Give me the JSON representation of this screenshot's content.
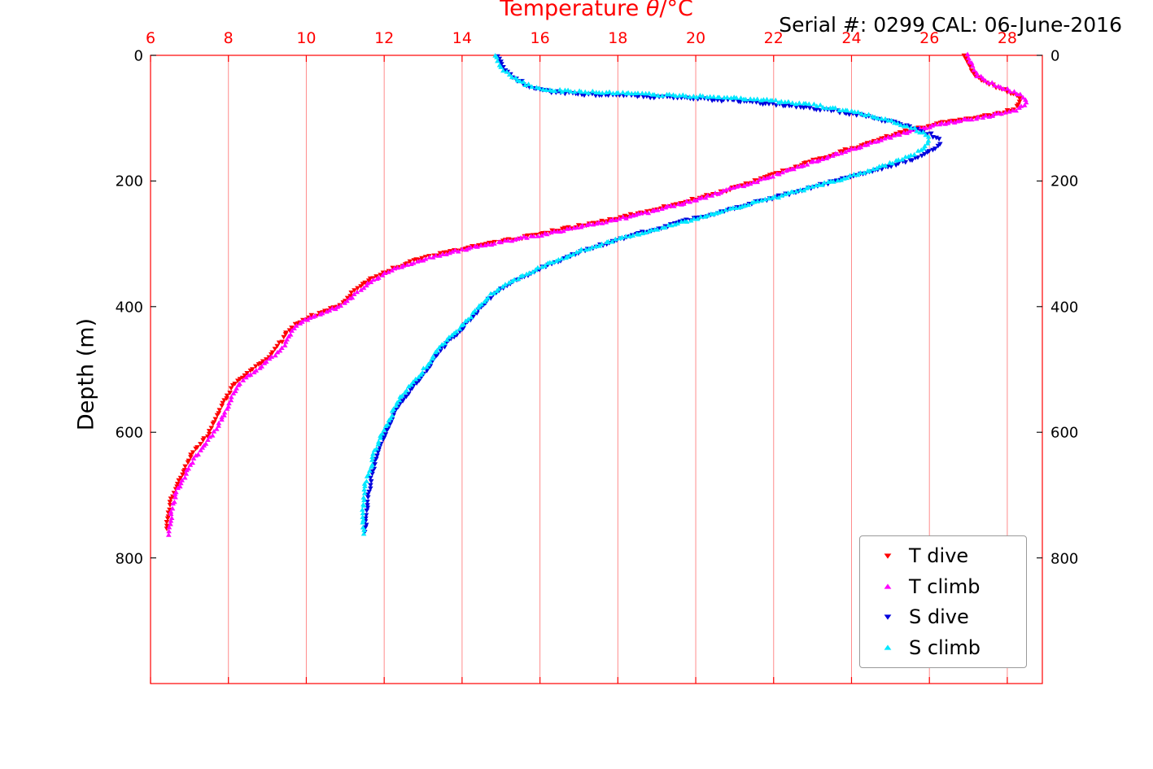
{
  "title": {
    "prefix": "Temperature ",
    "theta": "θ",
    "suffix": "/°C"
  },
  "annotation": "Serial #: 0299 CAL: 06-June-2016",
  "colors": {
    "axis_x": "#ff0000",
    "grid": "#ff0000",
    "t_dive": "#ff0000",
    "t_climb": "#ff00ff",
    "s_dive": "#0000dd",
    "s_climb": "#00e8ff",
    "text": "#000000"
  },
  "legend": {
    "position": "lower right",
    "items": [
      {
        "label": "T dive",
        "color": "#ff0000",
        "marker": "triangle-down"
      },
      {
        "label": "T climb",
        "color": "#ff00ff",
        "marker": "triangle-up"
      },
      {
        "label": "S dive",
        "color": "#0000dd",
        "marker": "triangle-down"
      },
      {
        "label": "S climb",
        "color": "#00e8ff",
        "marker": "triangle-up"
      }
    ]
  },
  "chart_data": {
    "type": "scatter",
    "title": "Temperature θ/°C",
    "xlabel": "Temperature θ/°C",
    "ylabel": "Depth (m)",
    "annotation": "Serial #: 0299 CAL: 06-June-2016",
    "xlim": [
      6,
      28.9
    ],
    "ylim": [
      0,
      1000
    ],
    "y_axis_reversed": true,
    "x_ticks": [
      6,
      8,
      10,
      12,
      14,
      16,
      18,
      20,
      22,
      24,
      26,
      28
    ],
    "y_ticks": [
      0,
      200,
      400,
      600,
      800
    ],
    "grid": "vertical-red",
    "legend_position": "lower right",
    "series": [
      {
        "name": "T dive",
        "color": "#ff0000",
        "marker": "triangle-down",
        "points": [
          [
            0,
            26.9
          ],
          [
            10,
            27.0
          ],
          [
            20,
            27.05
          ],
          [
            30,
            27.15
          ],
          [
            40,
            27.35
          ],
          [
            48,
            27.65
          ],
          [
            55,
            27.95
          ],
          [
            62,
            28.2
          ],
          [
            70,
            28.35
          ],
          [
            78,
            28.35
          ],
          [
            85,
            28.2
          ],
          [
            92,
            27.85
          ],
          [
            98,
            27.3
          ],
          [
            104,
            26.7
          ],
          [
            110,
            26.1
          ],
          [
            117,
            25.6
          ],
          [
            124,
            25.15
          ],
          [
            132,
            24.75
          ],
          [
            141,
            24.3
          ],
          [
            150,
            23.85
          ],
          [
            160,
            23.35
          ],
          [
            170,
            22.85
          ],
          [
            180,
            22.4
          ],
          [
            190,
            21.9
          ],
          [
            200,
            21.45
          ],
          [
            212,
            20.85
          ],
          [
            224,
            20.2
          ],
          [
            236,
            19.5
          ],
          [
            248,
            18.75
          ],
          [
            260,
            17.9
          ],
          [
            272,
            16.95
          ],
          [
            284,
            15.95
          ],
          [
            296,
            14.9
          ],
          [
            308,
            13.95
          ],
          [
            320,
            13.15
          ],
          [
            330,
            12.6
          ],
          [
            340,
            12.2
          ],
          [
            352,
            11.8
          ],
          [
            364,
            11.5
          ],
          [
            376,
            11.25
          ],
          [
            388,
            11.05
          ],
          [
            398,
            10.85
          ],
          [
            406,
            10.55
          ],
          [
            414,
            10.2
          ],
          [
            422,
            9.9
          ],
          [
            430,
            9.7
          ],
          [
            440,
            9.55
          ],
          [
            452,
            9.45
          ],
          [
            464,
            9.3
          ],
          [
            476,
            9.15
          ],
          [
            486,
            8.95
          ],
          [
            496,
            8.75
          ],
          [
            508,
            8.5
          ],
          [
            518,
            8.3
          ],
          [
            528,
            8.15
          ],
          [
            540,
            8.05
          ],
          [
            552,
            7.95
          ],
          [
            564,
            7.85
          ],
          [
            576,
            7.75
          ],
          [
            588,
            7.65
          ],
          [
            600,
            7.55
          ],
          [
            612,
            7.4
          ],
          [
            624,
            7.25
          ],
          [
            636,
            7.1
          ],
          [
            648,
            7.0
          ],
          [
            660,
            6.9
          ],
          [
            672,
            6.8
          ],
          [
            684,
            6.7
          ],
          [
            696,
            6.62
          ],
          [
            708,
            6.55
          ],
          [
            720,
            6.5
          ],
          [
            732,
            6.47
          ],
          [
            744,
            6.44
          ],
          [
            756,
            6.42
          ]
        ]
      },
      {
        "name": "T climb",
        "color": "#ff00ff",
        "marker": "triangle-up",
        "points": [
          [
            0,
            26.95
          ],
          [
            10,
            27.05
          ],
          [
            20,
            27.1
          ],
          [
            30,
            27.2
          ],
          [
            40,
            27.4
          ],
          [
            48,
            27.7
          ],
          [
            55,
            28.0
          ],
          [
            62,
            28.3
          ],
          [
            70,
            28.45
          ],
          [
            78,
            28.45
          ],
          [
            85,
            28.3
          ],
          [
            92,
            27.95
          ],
          [
            98,
            27.4
          ],
          [
            104,
            26.8
          ],
          [
            110,
            26.2
          ],
          [
            117,
            25.7
          ],
          [
            124,
            25.25
          ],
          [
            132,
            24.85
          ],
          [
            141,
            24.4
          ],
          [
            150,
            23.95
          ],
          [
            160,
            23.45
          ],
          [
            170,
            22.95
          ],
          [
            180,
            22.5
          ],
          [
            190,
            22.0
          ],
          [
            200,
            21.55
          ],
          [
            212,
            20.95
          ],
          [
            224,
            20.3
          ],
          [
            236,
            19.6
          ],
          [
            248,
            18.85
          ],
          [
            260,
            18.0
          ],
          [
            272,
            17.1
          ],
          [
            284,
            16.1
          ],
          [
            296,
            15.05
          ],
          [
            308,
            14.05
          ],
          [
            320,
            13.25
          ],
          [
            330,
            12.7
          ],
          [
            340,
            12.25
          ],
          [
            352,
            11.85
          ],
          [
            364,
            11.55
          ],
          [
            376,
            11.3
          ],
          [
            388,
            11.1
          ],
          [
            398,
            10.9
          ],
          [
            406,
            10.6
          ],
          [
            414,
            10.25
          ],
          [
            422,
            9.95
          ],
          [
            430,
            9.75
          ],
          [
            440,
            9.6
          ],
          [
            452,
            9.5
          ],
          [
            464,
            9.35
          ],
          [
            476,
            9.2
          ],
          [
            486,
            9.0
          ],
          [
            496,
            8.8
          ],
          [
            508,
            8.55
          ],
          [
            518,
            8.35
          ],
          [
            528,
            8.2
          ],
          [
            540,
            8.1
          ],
          [
            552,
            8.0
          ],
          [
            564,
            7.9
          ],
          [
            576,
            7.8
          ],
          [
            588,
            7.7
          ],
          [
            600,
            7.6
          ],
          [
            612,
            7.45
          ],
          [
            624,
            7.3
          ],
          [
            636,
            7.15
          ],
          [
            648,
            7.05
          ],
          [
            660,
            6.95
          ],
          [
            672,
            6.85
          ],
          [
            684,
            6.75
          ],
          [
            696,
            6.65
          ],
          [
            708,
            6.58
          ],
          [
            720,
            6.52
          ],
          [
            732,
            6.49
          ],
          [
            744,
            6.46
          ],
          [
            756,
            6.43
          ],
          [
            764,
            6.42
          ]
        ]
      },
      {
        "name": "S dive",
        "color": "#0000dd",
        "marker": "triangle-down",
        "points": [
          [
            0,
            14.9
          ],
          [
            10,
            14.95
          ],
          [
            20,
            15.05
          ],
          [
            30,
            15.2
          ],
          [
            40,
            15.45
          ],
          [
            48,
            15.7
          ],
          [
            54,
            16.0
          ],
          [
            58,
            16.4
          ],
          [
            61,
            17.0
          ],
          [
            63,
            17.8
          ],
          [
            65,
            18.6
          ],
          [
            67,
            19.4
          ],
          [
            69,
            20.1
          ],
          [
            72,
            20.9
          ],
          [
            75,
            21.6
          ],
          [
            79,
            22.3
          ],
          [
            84,
            23.0
          ],
          [
            90,
            23.7
          ],
          [
            96,
            24.3
          ],
          [
            103,
            24.8
          ],
          [
            110,
            25.3
          ],
          [
            118,
            25.7
          ],
          [
            126,
            26.0
          ],
          [
            134,
            26.2
          ],
          [
            142,
            26.25
          ],
          [
            150,
            26.1
          ],
          [
            158,
            25.85
          ],
          [
            166,
            25.5
          ],
          [
            174,
            25.1
          ],
          [
            182,
            24.65
          ],
          [
            190,
            24.15
          ],
          [
            200,
            23.6
          ],
          [
            210,
            23.0
          ],
          [
            220,
            22.4
          ],
          [
            230,
            21.8
          ],
          [
            240,
            21.2
          ],
          [
            250,
            20.6
          ],
          [
            260,
            20.0
          ],
          [
            270,
            19.4
          ],
          [
            280,
            18.8
          ],
          [
            290,
            18.2
          ],
          [
            300,
            17.65
          ],
          [
            312,
            17.05
          ],
          [
            324,
            16.55
          ],
          [
            336,
            16.05
          ],
          [
            348,
            15.65
          ],
          [
            360,
            15.25
          ],
          [
            372,
            14.95
          ],
          [
            384,
            14.7
          ],
          [
            396,
            14.5
          ],
          [
            410,
            14.3
          ],
          [
            424,
            14.1
          ],
          [
            438,
            13.9
          ],
          [
            452,
            13.65
          ],
          [
            466,
            13.45
          ],
          [
            480,
            13.3
          ],
          [
            494,
            13.15
          ],
          [
            508,
            12.95
          ],
          [
            522,
            12.75
          ],
          [
            536,
            12.55
          ],
          [
            550,
            12.4
          ],
          [
            564,
            12.25
          ],
          [
            578,
            12.15
          ],
          [
            592,
            12.05
          ],
          [
            606,
            11.95
          ],
          [
            620,
            11.85
          ],
          [
            634,
            11.75
          ],
          [
            648,
            11.7
          ],
          [
            662,
            11.65
          ],
          [
            676,
            11.6
          ],
          [
            690,
            11.55
          ],
          [
            704,
            11.52
          ],
          [
            718,
            11.5
          ],
          [
            732,
            11.5
          ],
          [
            746,
            11.5
          ],
          [
            760,
            11.48
          ]
        ]
      },
      {
        "name": "S climb",
        "color": "#00e8ff",
        "marker": "triangle-up",
        "points": [
          [
            0,
            14.85
          ],
          [
            10,
            14.9
          ],
          [
            20,
            15.0
          ],
          [
            30,
            15.15
          ],
          [
            40,
            15.4
          ],
          [
            46,
            15.6
          ],
          [
            52,
            15.9
          ],
          [
            56,
            16.3
          ],
          [
            58,
            16.9
          ],
          [
            60,
            17.7
          ],
          [
            62,
            18.6
          ],
          [
            64,
            19.4
          ],
          [
            66,
            20.2
          ],
          [
            68,
            20.9
          ],
          [
            71,
            21.6
          ],
          [
            75,
            22.3
          ],
          [
            80,
            23.0
          ],
          [
            86,
            23.6
          ],
          [
            93,
            24.2
          ],
          [
            100,
            24.7
          ],
          [
            108,
            25.1
          ],
          [
            116,
            25.5
          ],
          [
            124,
            25.75
          ],
          [
            132,
            25.9
          ],
          [
            141,
            25.9
          ],
          [
            150,
            25.75
          ],
          [
            160,
            25.45
          ],
          [
            170,
            25.05
          ],
          [
            180,
            24.6
          ],
          [
            190,
            24.1
          ],
          [
            200,
            23.55
          ],
          [
            210,
            22.95
          ],
          [
            220,
            22.35
          ],
          [
            230,
            21.75
          ],
          [
            240,
            21.15
          ],
          [
            250,
            20.55
          ],
          [
            260,
            19.95
          ],
          [
            270,
            19.35
          ],
          [
            280,
            18.75
          ],
          [
            290,
            18.15
          ],
          [
            300,
            17.6
          ],
          [
            312,
            17.0
          ],
          [
            324,
            16.5
          ],
          [
            336,
            16.0
          ],
          [
            348,
            15.6
          ],
          [
            360,
            15.2
          ],
          [
            372,
            14.9
          ],
          [
            384,
            14.65
          ],
          [
            396,
            14.45
          ],
          [
            410,
            14.25
          ],
          [
            424,
            14.05
          ],
          [
            438,
            13.85
          ],
          [
            452,
            13.6
          ],
          [
            466,
            13.4
          ],
          [
            480,
            13.25
          ],
          [
            494,
            13.1
          ],
          [
            508,
            12.9
          ],
          [
            522,
            12.7
          ],
          [
            536,
            12.5
          ],
          [
            550,
            12.35
          ],
          [
            564,
            12.2
          ],
          [
            578,
            12.1
          ],
          [
            592,
            12.0
          ],
          [
            606,
            11.9
          ],
          [
            620,
            11.8
          ],
          [
            634,
            11.7
          ],
          [
            648,
            11.65
          ],
          [
            662,
            11.6
          ],
          [
            676,
            11.55
          ],
          [
            690,
            11.5
          ],
          [
            704,
            11.5
          ],
          [
            718,
            11.48
          ],
          [
            732,
            11.47
          ],
          [
            746,
            11.46
          ],
          [
            762,
            11.45
          ]
        ]
      }
    ]
  }
}
